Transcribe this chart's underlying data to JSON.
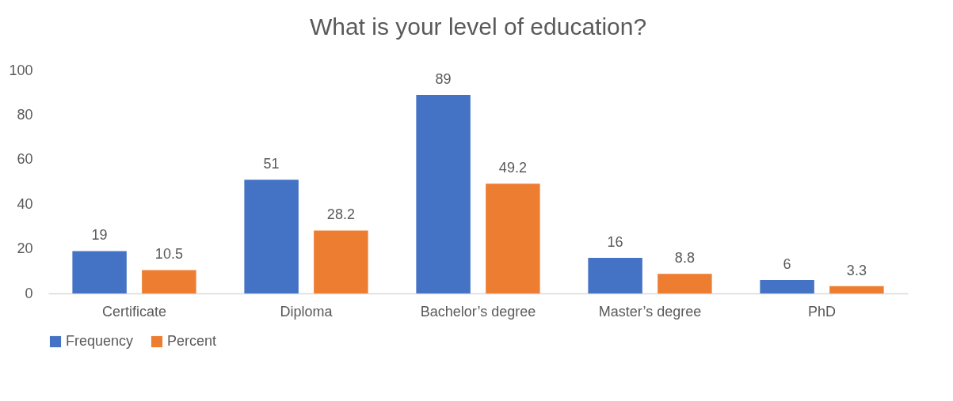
{
  "chart_data": {
    "type": "bar",
    "title": "What is your level of education?",
    "categories": [
      "Certificate",
      "Diploma",
      "Bachelor’s degree",
      "Master’s degree",
      "PhD"
    ],
    "series": [
      {
        "name": "Frequency",
        "color": "#4472c4",
        "values": [
          19,
          51,
          89,
          16,
          6
        ]
      },
      {
        "name": "Percent",
        "color": "#ed7d31",
        "values": [
          10.5,
          28.2,
          49.2,
          8.8,
          3.3
        ]
      }
    ],
    "ylim": [
      0,
      100
    ],
    "yticks": [
      0,
      20,
      40,
      60,
      80,
      100
    ],
    "legend": "bottom",
    "data_labels": true
  }
}
